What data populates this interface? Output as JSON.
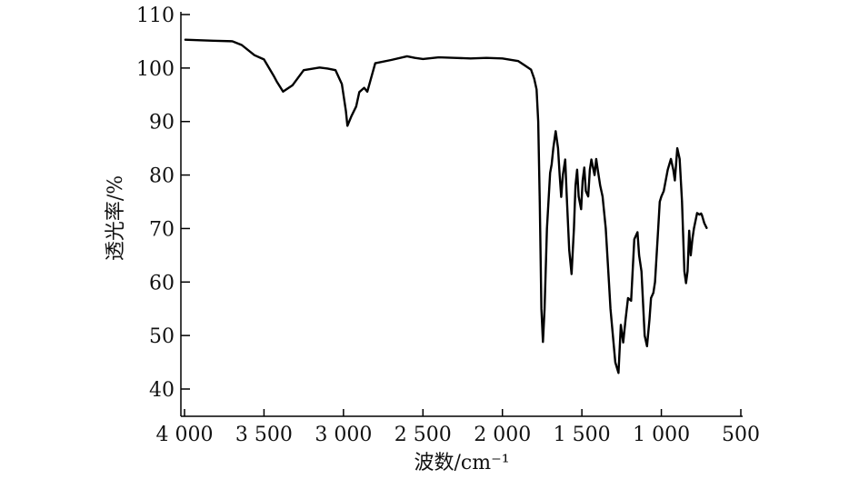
{
  "chart_data": {
    "type": "line",
    "title": "",
    "xlabel": "波数/cm⁻¹",
    "ylabel": "透光率/%",
    "xlim": [
      4000,
      500
    ],
    "ylim": [
      40,
      110
    ],
    "x_reversed": true,
    "grid": false,
    "legend": "none",
    "line_color": "#000000",
    "xticks": [
      4000,
      3500,
      3000,
      2500,
      2000,
      1500,
      1000,
      500
    ],
    "xtick_labels": [
      "4 000",
      "3 500",
      "3 000",
      "2 500",
      "2 000",
      "1 500",
      "1 000",
      "500"
    ],
    "yticks": [
      40,
      50,
      60,
      70,
      80,
      90,
      100,
      110
    ],
    "ytick_labels": [
      "40",
      "50",
      "60",
      "70",
      "80",
      "90",
      "100",
      "110"
    ],
    "series": [
      {
        "name": "",
        "x": [
          3995,
          3900,
          3820,
          3700,
          3640,
          3560,
          3500,
          3440,
          3420,
          3380,
          3320,
          3250,
          3150,
          3100,
          3050,
          3010,
          2985,
          2975,
          2950,
          2920,
          2900,
          2870,
          2850,
          2800,
          2700,
          2600,
          2550,
          2500,
          2400,
          2300,
          2200,
          2100,
          2000,
          1900,
          1860,
          1820,
          1800,
          1785,
          1775,
          1765,
          1755,
          1745,
          1735,
          1720,
          1700,
          1690,
          1680,
          1665,
          1650,
          1640,
          1630,
          1620,
          1605,
          1595,
          1580,
          1565,
          1550,
          1540,
          1530,
          1520,
          1505,
          1495,
          1485,
          1475,
          1460,
          1450,
          1440,
          1420,
          1410,
          1400,
          1385,
          1370,
          1350,
          1330,
          1320,
          1290,
          1270,
          1255,
          1240,
          1225,
          1210,
          1190,
          1170,
          1150,
          1140,
          1125,
          1105,
          1090,
          1075,
          1065,
          1050,
          1040,
          1020,
          1010,
          1000,
          985,
          960,
          940,
          925,
          915,
          900,
          885,
          870,
          855,
          845,
          835,
          825,
          815,
          805,
          795,
          785,
          775,
          760,
          750,
          745,
          730,
          715
        ],
        "y": [
          105.3,
          105.2,
          105.1,
          105.0,
          104.3,
          102.4,
          101.6,
          98.6,
          97.5,
          95.6,
          96.8,
          99.6,
          100.1,
          99.9,
          99.6,
          97.0,
          92.0,
          89.2,
          91.0,
          92.8,
          95.5,
          96.3,
          95.6,
          100.9,
          101.5,
          102.2,
          101.9,
          101.7,
          102.0,
          101.9,
          101.8,
          101.9,
          101.8,
          101.3,
          100.5,
          99.7,
          98.0,
          96.0,
          90.0,
          75.0,
          55.0,
          48.8,
          55.0,
          70.0,
          80.4,
          82.0,
          85.0,
          88.2,
          85.0,
          80.0,
          75.9,
          80.0,
          82.9,
          76.0,
          66.0,
          61.5,
          70.0,
          78.0,
          81.0,
          76.0,
          73.6,
          79.0,
          81.4,
          77.0,
          76.0,
          81.0,
          82.9,
          80.0,
          83.0,
          81.0,
          78.0,
          76.0,
          70.0,
          60.0,
          55.0,
          45.0,
          43.0,
          52.0,
          48.7,
          53.0,
          57.0,
          56.5,
          68.0,
          69.3,
          65.0,
          62.0,
          50.0,
          48.0,
          53.0,
          57.0,
          58.0,
          60.0,
          70.0,
          75.0,
          76.0,
          77.0,
          81.0,
          83.0,
          81.0,
          79.0,
          85.0,
          83.0,
          75.0,
          62.0,
          59.8,
          62.0,
          69.6,
          65.0,
          68.0,
          70.0,
          71.5,
          72.9,
          72.6,
          72.8,
          72.5,
          71.0,
          70.1
        ]
      }
    ]
  }
}
